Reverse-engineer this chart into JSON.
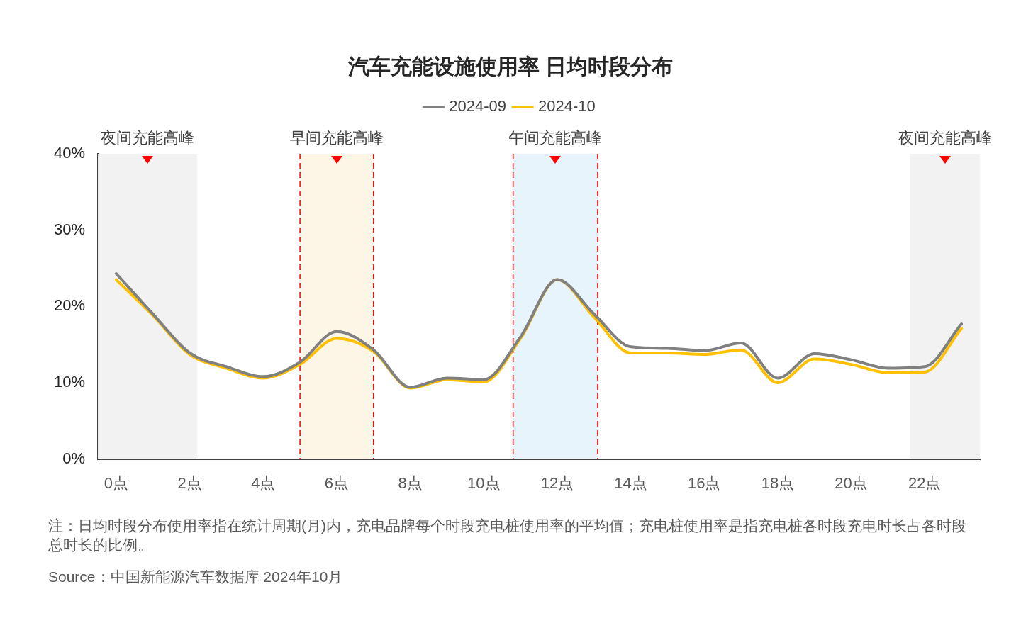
{
  "chart_data": {
    "type": "line",
    "title": "汽车充能设施使用率 日均时段分布",
    "x": [
      0,
      1,
      2,
      3,
      4,
      5,
      6,
      7,
      8,
      9,
      10,
      11,
      12,
      13,
      14,
      15,
      16,
      17,
      18,
      19,
      20,
      21,
      22,
      23
    ],
    "series": [
      {
        "name": "2024-09",
        "color": "#808080",
        "values": [
          24.3,
          19.0,
          13.9,
          12.1,
          10.8,
          12.7,
          16.7,
          14.3,
          9.4,
          10.6,
          10.4,
          16.0,
          23.5,
          19.0,
          14.7,
          14.5,
          14.2,
          15.2,
          10.6,
          13.8,
          13.0,
          11.9,
          12.1,
          17.7
        ]
      },
      {
        "name": "2024-10",
        "color": "#ffc000",
        "values": [
          23.5,
          18.8,
          13.7,
          11.9,
          10.6,
          12.4,
          15.8,
          14.1,
          9.3,
          10.4,
          10.1,
          15.8,
          23.5,
          18.6,
          13.9,
          13.9,
          13.7,
          14.3,
          10.0,
          13.1,
          12.4,
          11.3,
          11.4,
          17.1
        ]
      }
    ],
    "xlim": [
      -0.5,
      23.5
    ],
    "xticks": [
      {
        "value": 0,
        "label": "0点"
      },
      {
        "value": 2,
        "label": "2点"
      },
      {
        "value": 4,
        "label": "4点"
      },
      {
        "value": 6,
        "label": "6点"
      },
      {
        "value": 8,
        "label": "8点"
      },
      {
        "value": 10,
        "label": "10点"
      },
      {
        "value": 12,
        "label": "12点"
      },
      {
        "value": 14,
        "label": "14点"
      },
      {
        "value": 16,
        "label": "16点"
      },
      {
        "value": 18,
        "label": "18点"
      },
      {
        "value": 20,
        "label": "20点"
      },
      {
        "value": 22,
        "label": "22点"
      }
    ],
    "ylim": [
      0,
      40
    ],
    "yticks": [
      {
        "value": 0,
        "label": "0%"
      },
      {
        "value": 10,
        "label": "10%"
      },
      {
        "value": 20,
        "label": "20%"
      },
      {
        "value": 30,
        "label": "30%"
      },
      {
        "value": 40,
        "label": "40%"
      }
    ],
    "bands": [
      {
        "axis": "x",
        "from": -0.5,
        "to": 2.2,
        "label": "夜间充能高峰",
        "color": "#f2f2f2"
      },
      {
        "axis": "x",
        "from": 5,
        "to": 7,
        "label": "早间充能高峰",
        "color": "#fdf6e6"
      },
      {
        "axis": "x",
        "from": 10.8,
        "to": 13.1,
        "label": "午间充能高峰",
        "color": "#e8f4fb"
      },
      {
        "axis": "x",
        "from": 21.6,
        "to": 23.5,
        "label": "夜间充能高峰",
        "color": "#f2f2f2"
      }
    ],
    "ref_lines": [
      {
        "axis": "x",
        "value": 5,
        "color": "#ff0000",
        "line_style": "dashed"
      },
      {
        "axis": "x",
        "value": 7,
        "color": "#ff0000",
        "line_style": "dashed"
      },
      {
        "axis": "x",
        "value": 10.8,
        "color": "#ff0000",
        "line_style": "dashed"
      },
      {
        "axis": "x",
        "value": 13.1,
        "color": "#ff0000",
        "line_style": "dashed"
      }
    ],
    "grid": false,
    "legend": "top",
    "marker": "none",
    "line_style": "solid",
    "annotations": [
      "注：日均时段分布使用率指在统计周期(月)内，充电品牌每个时段充电桩使用率的平均值；充电桩使用率是指充电桩各时段充电时长占各时段总时长的比例。",
      "Source：中国新能源汽车数据库 2024年10月"
    ]
  }
}
